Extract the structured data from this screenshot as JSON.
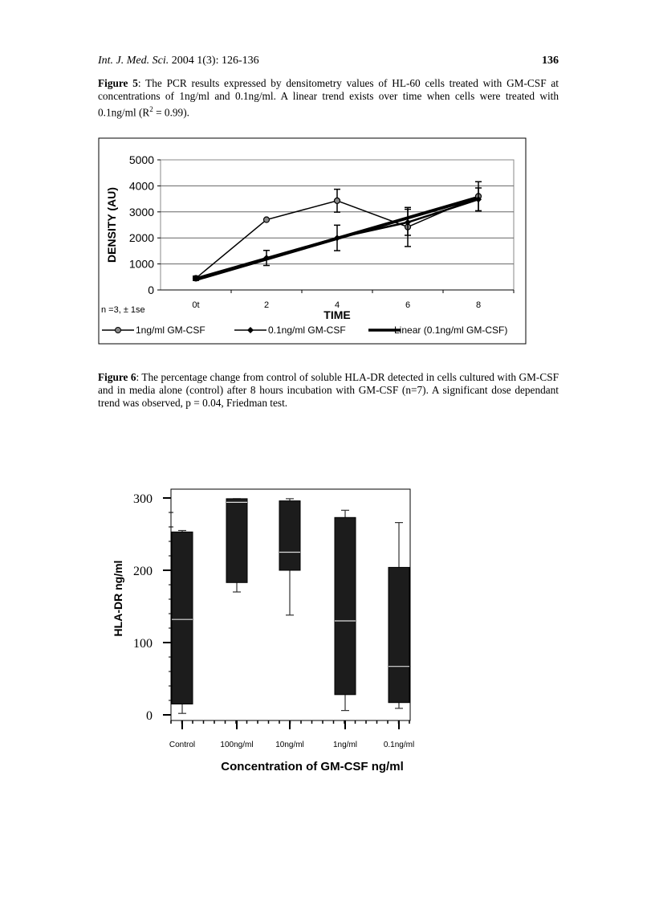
{
  "header": {
    "journal": "Int. J. Med. Sci.",
    "citation": "2004 1(3): 126-136",
    "page_number": "136"
  },
  "figure5": {
    "label": "Figure 5",
    "caption_before_sup": ": The PCR results expressed by densitometry values of HL-60 cells treated with GM-CSF at concentrations of 1ng/ml and 0.1ng/ml. A linear trend exists over time when cells were treated with 0.1ng/ml (R",
    "caption_sup": "2",
    "caption_after_sup": " = 0.99)."
  },
  "figure6": {
    "label": "Figure 6",
    "caption": ": The percentage change from control of soluble HLA-DR detected in cells cultured with GM-CSF and in media alone (control) after 8 hours incubation with GM-CSF (n=7). A significant dose dependant trend was observed, p = 0.04, Friedman test."
  },
  "chart_data": [
    {
      "type": "line",
      "xlabel": "TIME",
      "ylabel": "DENSITY (AU)",
      "categories": [
        "0t",
        "2",
        "4",
        "6",
        "8"
      ],
      "yticks": [
        "0",
        "1000",
        "2000",
        "3000",
        "4000",
        "5000"
      ],
      "ylim": [
        0,
        5000
      ],
      "grid": true,
      "note": "n =3, ± 1se",
      "legend_position": "bottom",
      "series": [
        {
          "name": "1ng/ml GM-CSF",
          "marker": "circle",
          "values": [
            450,
            2700,
            3430,
            2420,
            3600
          ],
          "error": [
            80,
            0,
            440,
            750,
            560
          ]
        },
        {
          "name": "0.1ng/ml GM-CSF",
          "marker": "diamond",
          "values": [
            450,
            1230,
            2000,
            2600,
            3480
          ],
          "error": [
            80,
            290,
            490,
            500,
            440
          ]
        },
        {
          "name": "Linear (0.1ng/ml GM-CSF)",
          "marker": "none",
          "trendline": true,
          "values": [
            400,
            1190,
            1980,
            2770,
            3560
          ]
        }
      ]
    },
    {
      "type": "box",
      "xlabel": "Concentration of GM-CSF ng/ml",
      "ylabel": "HLA-DR ng/ml",
      "categories": [
        "Control",
        "100ng/ml",
        "10ng/ml",
        "1ng/ml",
        "0.1ng/ml"
      ],
      "yticks": [
        "0",
        "100",
        "200",
        "300"
      ],
      "ylim": [
        0,
        300
      ],
      "boxes": [
        {
          "min": 2,
          "q1": 15,
          "median": 132,
          "q3": 253,
          "max": 255
        },
        {
          "min": 170,
          "q1": 183,
          "median": 294,
          "q3": 299,
          "max": 299
        },
        {
          "min": 138,
          "q1": 200,
          "median": 225,
          "q3": 296,
          "max": 299
        },
        {
          "min": 6,
          "q1": 28,
          "median": 130,
          "q3": 273,
          "max": 283
        },
        {
          "min": 9,
          "q1": 17,
          "median": 67,
          "q3": 204,
          "max": 266
        }
      ]
    }
  ]
}
